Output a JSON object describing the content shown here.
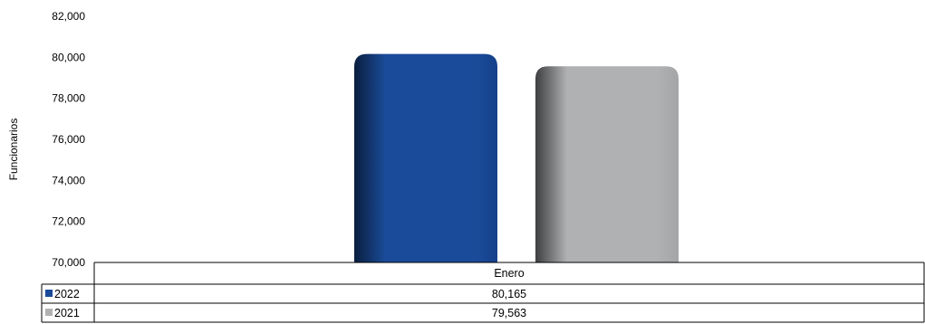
{
  "chart_data": {
    "type": "bar",
    "title": "",
    "xlabel": "",
    "ylabel": "Funcionarios",
    "ylim": [
      70000,
      82000
    ],
    "yticks": [
      "70,000",
      "72,000",
      "74,000",
      "76,000",
      "78,000",
      "80,000",
      "82,000"
    ],
    "ytick_values": [
      70000,
      72000,
      74000,
      76000,
      78000,
      80000,
      82000
    ],
    "categories": [
      "Enero"
    ],
    "series": [
      {
        "name": "2022",
        "values": [
          80165
        ],
        "labels": [
          "80,165"
        ],
        "color": "#1a4b9a"
      },
      {
        "name": "2021",
        "values": [
          79563
        ],
        "labels": [
          "79,563"
        ],
        "color": "#b0b1b3"
      }
    ],
    "grid": false,
    "legend": "data-table"
  }
}
